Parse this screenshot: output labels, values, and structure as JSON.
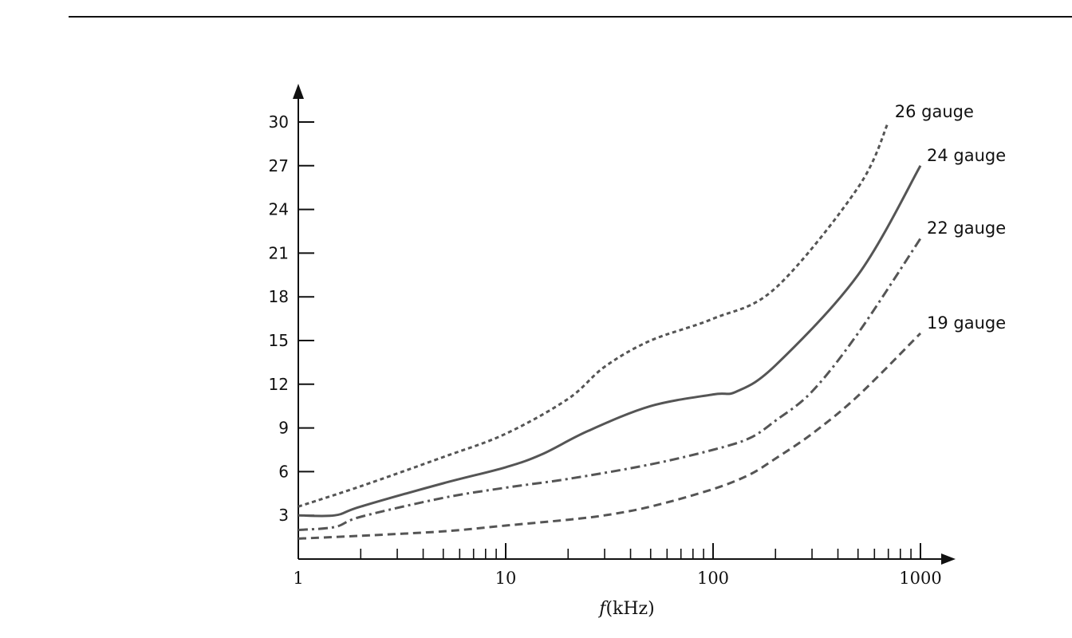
{
  "chart_data": {
    "type": "line",
    "title": "",
    "xlabel_symbol": "f",
    "xlabel_unit": "(kHz)",
    "ylabel": "",
    "x_scale": "log",
    "xlim": [
      1,
      1000
    ],
    "ylim": [
      0,
      30
    ],
    "x_tick_labels": [
      "1",
      "10",
      "100",
      "1000"
    ],
    "y_tick_labels": [
      "3",
      "6",
      "9",
      "12",
      "15",
      "18",
      "21",
      "24",
      "27",
      "30"
    ],
    "grid": false,
    "series": [
      {
        "name": "26 gauge",
        "style": "dotted",
        "x": [
          1,
          2,
          5,
          10,
          20,
          30,
          50,
          100,
          200,
          500,
          700
        ],
        "y": [
          3.6,
          5.0,
          7.0,
          8.6,
          11.0,
          13.2,
          15.0,
          16.5,
          18.6,
          25.5,
          30.0
        ]
      },
      {
        "name": "24 gauge",
        "style": "solid",
        "x": [
          1,
          1.5,
          2,
          5,
          10,
          15,
          25,
          50,
          100,
          130,
          200,
          500,
          1000
        ],
        "y": [
          3.0,
          3.0,
          3.6,
          5.2,
          6.3,
          7.2,
          8.8,
          10.5,
          11.3,
          11.5,
          13.3,
          19.5,
          27.0
        ]
      },
      {
        "name": "22 gauge",
        "style": "dash-dot",
        "x": [
          1,
          1.5,
          2,
          5,
          10,
          20,
          50,
          100,
          150,
          200,
          300,
          500,
          1000
        ],
        "y": [
          2.0,
          2.2,
          2.9,
          4.2,
          4.9,
          5.5,
          6.5,
          7.5,
          8.3,
          9.5,
          11.5,
          15.5,
          22.0
        ]
      },
      {
        "name": "19 gauge",
        "style": "dashed",
        "x": [
          1,
          2,
          5,
          10,
          20,
          30,
          50,
          100,
          150,
          200,
          300,
          500,
          1000
        ],
        "y": [
          1.4,
          1.6,
          1.9,
          2.3,
          2.7,
          3.0,
          3.6,
          4.8,
          5.8,
          6.9,
          8.6,
          11.2,
          15.5
        ]
      }
    ]
  }
}
